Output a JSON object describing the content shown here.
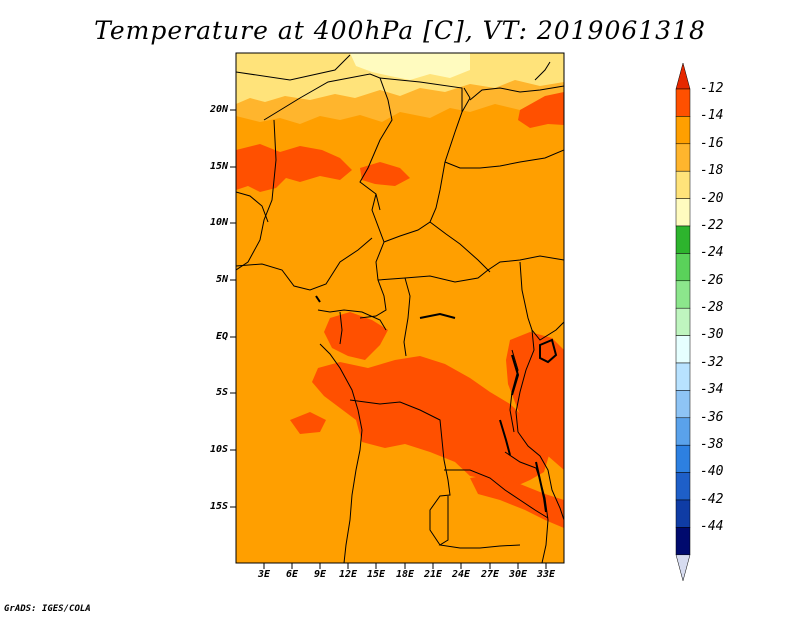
{
  "title": "Temperature at 400hPa [C], VT: 2019061318",
  "credit": "GrADS: IGES/COLA",
  "y_ticks": [
    "20N",
    "15N",
    "10N",
    "5N",
    "EQ",
    "5S",
    "10S",
    "15S"
  ],
  "x_ticks": [
    "3E",
    "6E",
    "9E",
    "12E",
    "15E",
    "18E",
    "21E",
    "24E",
    "27E",
    "30E",
    "33E"
  ],
  "colorbar": {
    "labels": [
      "-12",
      "-14",
      "-16",
      "-18",
      "-20",
      "-22",
      "-24",
      "-26",
      "-28",
      "-30",
      "-32",
      "-34",
      "-36",
      "-38",
      "-40",
      "-42",
      "-44"
    ],
    "colors": [
      "#ff5000",
      "#ff9f00",
      "#ffb52d",
      "#ffe37a",
      "#fffbbf",
      "#2db42d",
      "#5ad25a",
      "#8ce68c",
      "#bff5bf",
      "#e6ffff",
      "#b8e2ff",
      "#8ec4f5",
      "#5aa2eb",
      "#2d80e1",
      "#1e5fc8",
      "#0f3ca5",
      "#000a6e"
    ],
    "tip_top_color": "#e62800",
    "tip_bottom_color": "#d7dcf0"
  },
  "palette": {
    "base": "#ff9f00",
    "warm": "#ff5000",
    "pale": "#ffb52d",
    "yellow": "#ffe37a",
    "cream": "#fffbbf"
  }
}
